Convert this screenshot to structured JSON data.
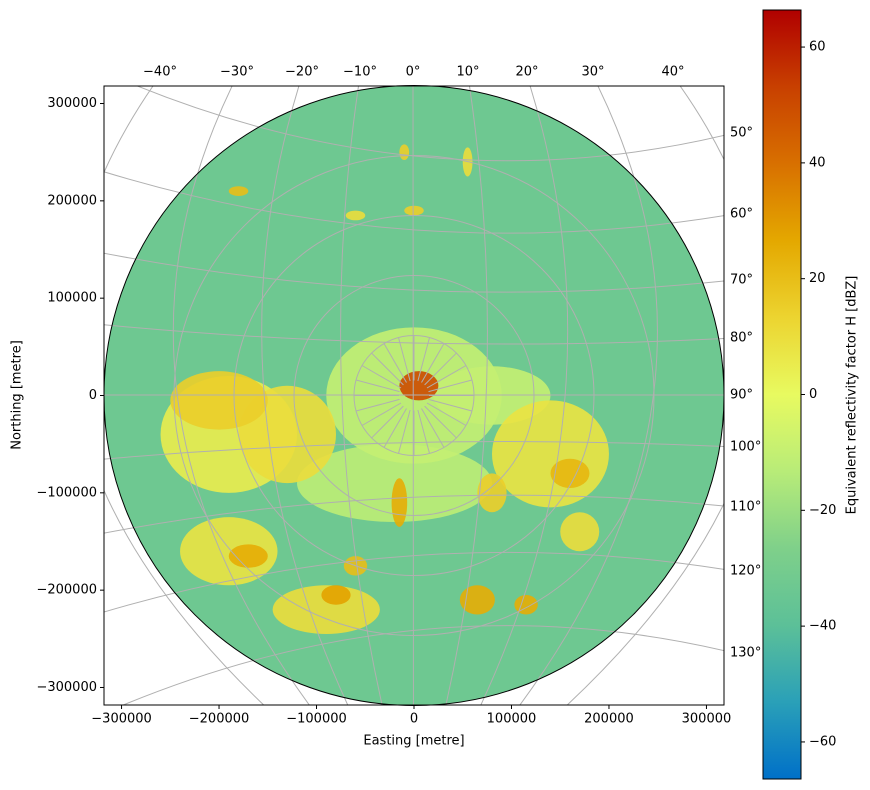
{
  "chart_data": {
    "type": "ppi",
    "xlabel": "Easting [metre]",
    "ylabel": "Northing [metre]",
    "xlim": [
      -318000,
      318000
    ],
    "ylim": [
      -318000,
      318000
    ],
    "xticks": [
      {
        "value": -300000,
        "label": "−300000"
      },
      {
        "value": -200000,
        "label": "−200000"
      },
      {
        "value": -100000,
        "label": "−100000"
      },
      0,
      100000,
      200000,
      300000
    ],
    "yticks": [
      {
        "value": -300000,
        "label": "−300000"
      },
      {
        "value": -200000,
        "label": "−200000"
      },
      {
        "value": -100000,
        "label": "−100000"
      },
      0,
      100000,
      200000,
      300000
    ],
    "lon_ticks": [
      {
        "value": -40,
        "label": "−40°"
      },
      {
        "value": -30,
        "label": "−30°"
      },
      {
        "value": -20,
        "label": "−20°"
      },
      {
        "value": -10,
        "label": "−10°"
      },
      {
        "value": 0,
        "label": "0°"
      },
      {
        "value": 10,
        "label": "10°"
      },
      {
        "value": 20,
        "label": "20°"
      },
      {
        "value": 30,
        "label": "30°"
      },
      {
        "value": 40,
        "label": "40°"
      }
    ],
    "lat_ticks": [
      {
        "value": 50,
        "label": "50°"
      },
      {
        "value": 60,
        "label": "60°"
      },
      {
        "value": 70,
        "label": "70°"
      },
      {
        "value": 80,
        "label": "80°"
      },
      {
        "value": 90,
        "label": "90°"
      },
      {
        "value": 100,
        "label": "100°"
      },
      {
        "value": 110,
        "label": "110°"
      },
      {
        "value": 120,
        "label": "120°"
      },
      {
        "value": 130,
        "label": "130°"
      }
    ],
    "grid": true,
    "colorbar": {
      "label": "Equivalent reflectivity factor H [dBZ]",
      "clim": [
        -66.4,
        66.4
      ],
      "ticks": [
        {
          "value": -60,
          "label": "−60"
        },
        {
          "value": -40,
          "label": "−40"
        },
        {
          "value": -20,
          "label": "−20"
        },
        0,
        20,
        40,
        60
      ],
      "colormap": [
        "#0070c8",
        "#2aa0b8",
        "#5cc098",
        "#7fd08a",
        "#b8ec78",
        "#e8fa60",
        "#ecd430",
        "#e4a800",
        "#d87000",
        "#c84000",
        "#b00000"
      ]
    },
    "background_dbz": -33,
    "echoes": {
      "x": [
        -20000,
        0,
        80000,
        -190000,
        -130000,
        -200000,
        -190000,
        140000,
        170000,
        -90000,
        80000,
        -170000,
        160000,
        5000,
        -15000,
        -80000,
        -60000,
        65000,
        115000,
        -60000,
        0,
        -180000,
        -10000,
        55000
      ],
      "y": [
        -90000,
        0,
        0,
        -40000,
        -40000,
        -5000,
        -160000,
        -60000,
        -140000,
        -220000,
        -100000,
        -165000,
        -80000,
        10000,
        -110000,
        -205000,
        -175000,
        -210000,
        -215000,
        185000,
        190000,
        210000,
        250000,
        240000
      ],
      "rx": [
        100000,
        90000,
        60000,
        70000,
        50000,
        50000,
        50000,
        60000,
        20000,
        55000,
        15000,
        20000,
        20000,
        20000,
        8000,
        15000,
        12000,
        18000,
        12000,
        10000,
        10000,
        10000,
        5000,
        5000
      ],
      "ry": [
        40000,
        70000,
        30000,
        60000,
        50000,
        30000,
        35000,
        55000,
        20000,
        25000,
        20000,
        12000,
        15000,
        15000,
        25000,
        10000,
        10000,
        15000,
        10000,
        5000,
        5000,
        5000,
        8000,
        15000
      ],
      "dbz": [
        -12,
        -10,
        -10,
        5,
        10,
        15,
        8,
        8,
        10,
        10,
        15,
        25,
        22,
        50,
        25,
        28,
        20,
        25,
        25,
        10,
        15,
        20,
        15,
        10
      ]
    }
  }
}
